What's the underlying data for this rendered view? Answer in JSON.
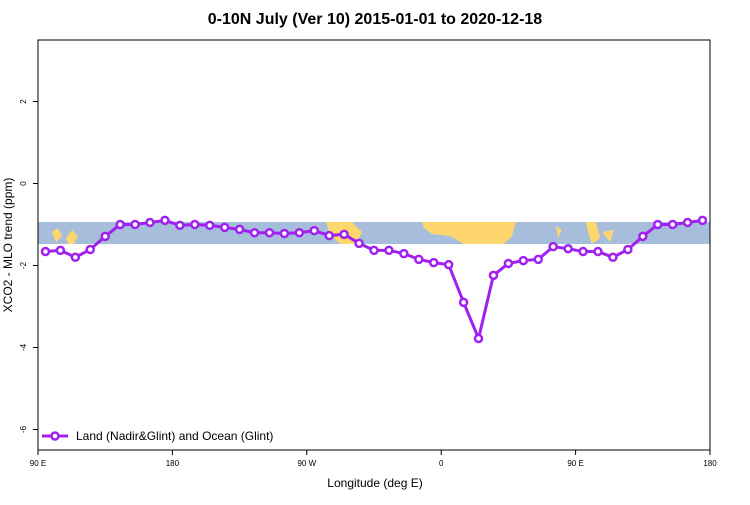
{
  "chart_data": {
    "type": "line",
    "title": "0-10N July (Ver 10)   2015-01-01 to 2020-12-18",
    "xlabel": "Longitude (deg E)",
    "ylabel": "XCO2 - MLO trend (ppm)",
    "x": [
      95,
      105,
      115,
      125,
      135,
      145,
      155,
      165,
      175,
      185,
      195,
      205,
      215,
      225,
      235,
      245,
      255,
      265,
      275,
      285,
      295,
      305,
      315,
      325,
      335,
      345,
      355,
      365,
      375,
      385,
      395,
      405,
      415,
      425,
      435,
      445,
      455,
      465,
      475,
      485,
      495,
      505,
      515,
      525,
      535
    ],
    "series": [
      {
        "name": "Land (Nadir&Glint) and Ocean (Glint)",
        "color": "#a020f0",
        "values": [
          -1.66,
          -1.63,
          -1.8,
          -1.61,
          -1.29,
          -1.0,
          -1.0,
          -0.95,
          -0.9,
          -1.02,
          -1.0,
          -1.02,
          -1.07,
          -1.12,
          -1.2,
          -1.2,
          -1.22,
          -1.2,
          -1.15,
          -1.27,
          -1.24,
          -1.46,
          -1.63,
          -1.63,
          -1.71,
          -1.85,
          -1.93,
          -1.98,
          -2.9,
          -3.78,
          -2.24,
          -1.95,
          -1.88,
          -1.85,
          -1.54,
          -1.59,
          -1.66,
          -1.66,
          -1.8,
          -1.61,
          -1.29,
          -1.0,
          -1.0,
          -0.95,
          -0.9
        ]
      }
    ],
    "xlim": [
      90,
      540
    ],
    "xticks": [
      {
        "value": 90,
        "label": "90 E"
      },
      180,
      {
        "value": 270,
        "label": "90 W"
      },
      {
        "value": 360,
        "label": "0"
      },
      {
        "value": 450,
        "label": "90 E"
      },
      {
        "value": 540,
        "label": "180"
      }
    ],
    "ylim": [
      -6.5,
      3.5
    ],
    "yticks": [
      -6,
      -4,
      -2,
      0,
      2
    ],
    "legend": "bottom-left"
  }
}
